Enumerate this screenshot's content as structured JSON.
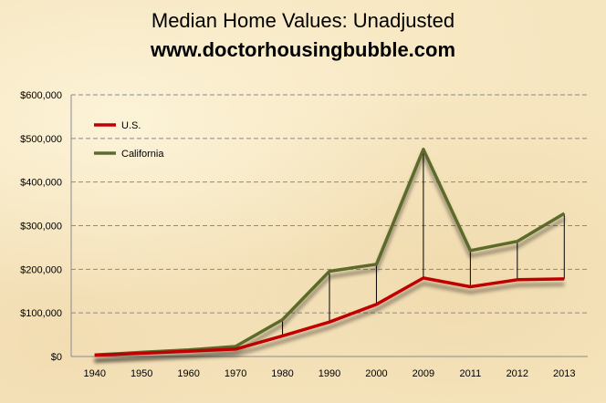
{
  "title": "Median Home Values:  Unadjusted",
  "subtitle": "www.doctorhousingbubble.com",
  "chart_data": {
    "type": "line",
    "categories": [
      "1940",
      "1950",
      "1960",
      "1970",
      "1980",
      "1990",
      "2000",
      "2009",
      "2011",
      "2012",
      "2013"
    ],
    "series": [
      {
        "name": "U.S.",
        "color": "#c00000",
        "values": [
          2900,
          7400,
          11900,
          17000,
          47200,
          79100,
          119600,
          180000,
          160000,
          176000,
          178000
        ]
      },
      {
        "name": "California",
        "color": "#5b6b2c",
        "values": [
          3500,
          9600,
          15100,
          23100,
          84500,
          195500,
          211500,
          475000,
          243000,
          264000,
          328000
        ]
      }
    ],
    "ylim": [
      0,
      600000
    ],
    "yticks": [
      "$0",
      "$100,000",
      "$200,000",
      "$300,000",
      "$400,000",
      "$500,000",
      "$600,000"
    ],
    "grid": true,
    "legend_position": "top-left"
  }
}
